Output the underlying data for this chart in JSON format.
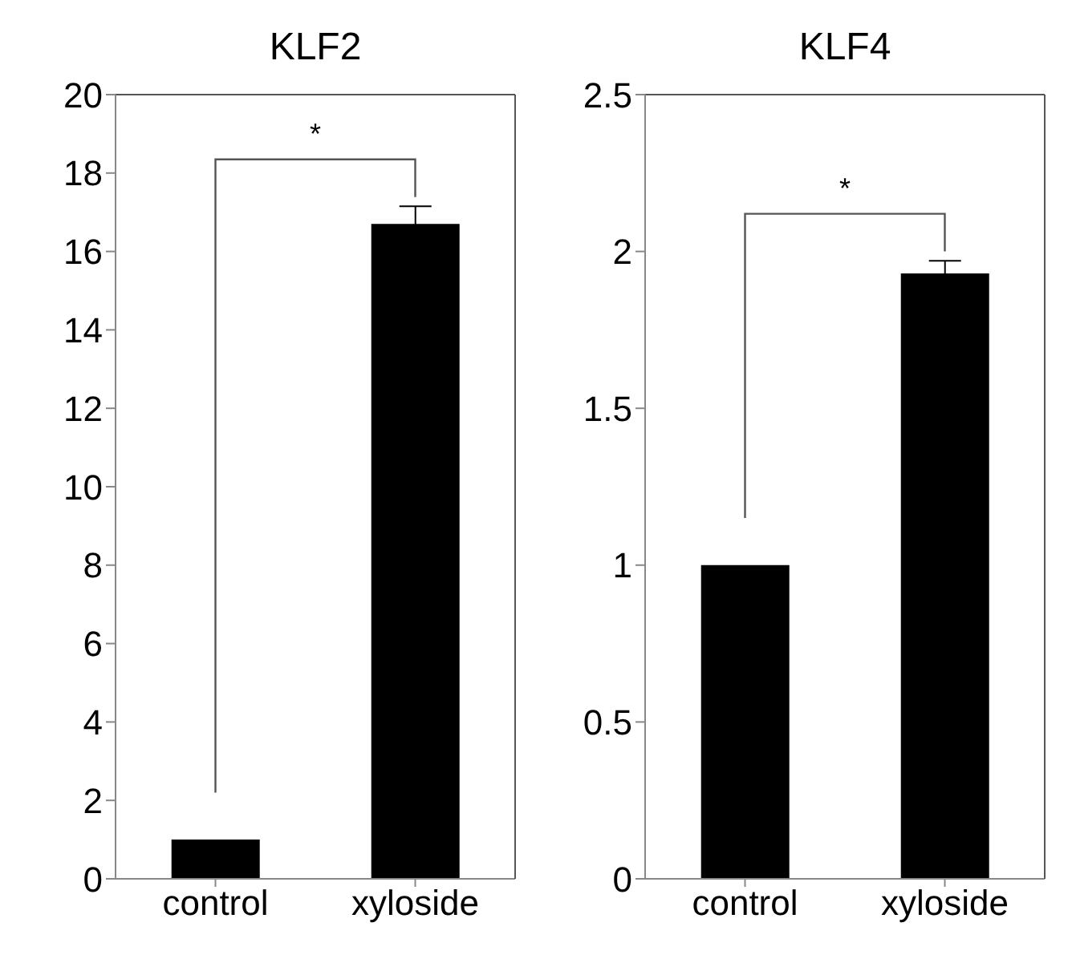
{
  "chart_data": [
    {
      "type": "bar",
      "title": "KLF2",
      "categories": [
        "control",
        "xyloside"
      ],
      "values": [
        1.0,
        16.7
      ],
      "errors": [
        null,
        0.45
      ],
      "color": "#000000",
      "ylim": [
        0,
        20
      ],
      "yticks": [
        0,
        2,
        4,
        6,
        8,
        10,
        12,
        14,
        16,
        18,
        20
      ],
      "grid": false,
      "annotations": [
        "*"
      ]
    },
    {
      "type": "bar",
      "title": "KLF4",
      "categories": [
        "control",
        "xyloside"
      ],
      "values": [
        1.0,
        1.93
      ],
      "errors": [
        null,
        0.04
      ],
      "color": "#000000",
      "ylim": [
        0,
        2.5
      ],
      "yticks": [
        0,
        0.5,
        1,
        1.5,
        2,
        2.5
      ],
      "grid": false,
      "annotations": [
        "*"
      ]
    }
  ]
}
